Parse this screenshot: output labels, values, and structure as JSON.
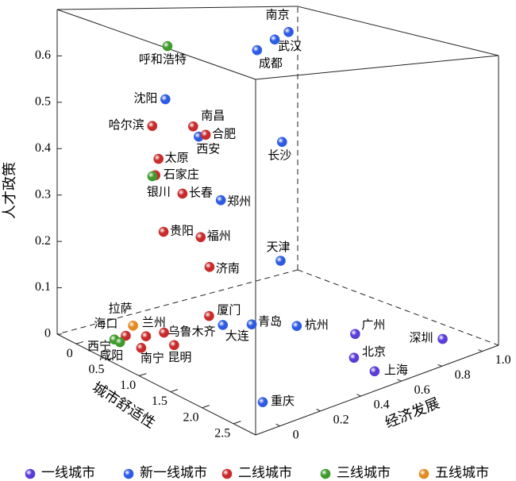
{
  "chart_data": {
    "type": "scatter3d",
    "xlabel": "城市舒适性",
    "ylabel": "经济发展",
    "zlabel": "人才政策",
    "xlim": [
      -0.3,
      2.85
    ],
    "ylim": [
      -0.12,
      1.08
    ],
    "zlim": [
      0,
      0.7
    ],
    "xticks": [
      0,
      0.5,
      {
        "value": 1,
        "label": "1.0"
      },
      1.5,
      {
        "value": 2,
        "label": "2.0"
      },
      2.5
    ],
    "yticks": [
      0,
      0.2,
      0.4,
      0.6,
      0.8,
      {
        "value": 1,
        "label": "1.0"
      }
    ],
    "zticks": [
      0,
      0.1,
      0.2,
      0.3,
      0.4,
      0.5,
      0.6
    ],
    "legend": "bottom",
    "series": [
      {
        "name": "一线城市",
        "color": "#5a3cd8",
        "labels": [
          "深圳",
          "广州",
          "北京",
          "上海"
        ],
        "x": [
          2.29,
          1.55,
          2.04,
          2.46
        ],
        "y": [
          0.98,
          0.78,
          0.62,
          0.59
        ],
        "z": [
          0,
          0,
          0,
          0
        ]
      },
      {
        "name": "新一线城市",
        "color": "#2d5be3",
        "labels": [
          "南京",
          "武汉",
          "成都",
          "沈阳",
          "西安",
          "长沙",
          "郑州",
          "天津",
          "青岛",
          "杭州",
          "大连",
          "重庆"
        ],
        "x": [
          0.44,
          0.38,
          0.26,
          0.08,
          0.29,
          0.97,
          0.48,
          0.63,
          0.65,
          0.98,
          0.48,
          2.29
        ],
        "y": [
          0.8,
          0.75,
          0.7,
          0.3,
          0.4,
          0.6,
          0.45,
          0.7,
          0.55,
          0.67,
          0.46,
          0.09
        ],
        "z": [
          0.67,
          0.65,
          0.62,
          0.51,
          0.43,
          0.44,
          0.29,
          0.13,
          0,
          0,
          0,
          0
        ]
      },
      {
        "name": "二线城市",
        "color": "#c92a2a",
        "labels": [
          "哈尔滨",
          "南昌",
          "合肥",
          "太原",
          "石家庄",
          "长春",
          "贵阳",
          "福州",
          "济南",
          "厦门",
          "乌鲁木齐",
          "兰州",
          "海口",
          "南宁",
          "昆明"
        ],
        "x": [
          0.19,
          0.36,
          0.4,
          0.13,
          0.08,
          0.35,
          0.21,
          0.32,
          0.46,
          0.2,
          0.28,
          0.25,
          0.12,
          0.46,
          0.6
        ],
        "y": [
          0.2,
          0.35,
          0.4,
          0.25,
          0.25,
          0.3,
          0.25,
          0.4,
          0.4,
          0.48,
          0.23,
          0.15,
          0.09,
          0.06,
          0.18
        ],
        "z": [
          0.46,
          0.46,
          0.44,
          0.38,
          0.34,
          0.31,
          0.22,
          0.2,
          0.14,
          0,
          0,
          0,
          0,
          0,
          0
        ]
      },
      {
        "name": "三线城市",
        "color": "#3d9b2b",
        "labels": [
          "呼和浩特",
          "银川",
          "西宁",
          "咸阳"
        ],
        "x": [
          0.43,
          0.35,
          0.13,
          0.22
        ],
        "y": [
          0.2,
          0.15,
          0.03,
          0.03
        ],
        "z": [
          0.65,
          0.36,
          0,
          0
        ]
      },
      {
        "name": "五线城市",
        "color": "#e38a20",
        "labels": [
          "拉萨"
        ],
        "x": [
          0.14
        ],
        "y": [
          0.12
        ],
        "z": [
          0.02
        ]
      }
    ]
  }
}
